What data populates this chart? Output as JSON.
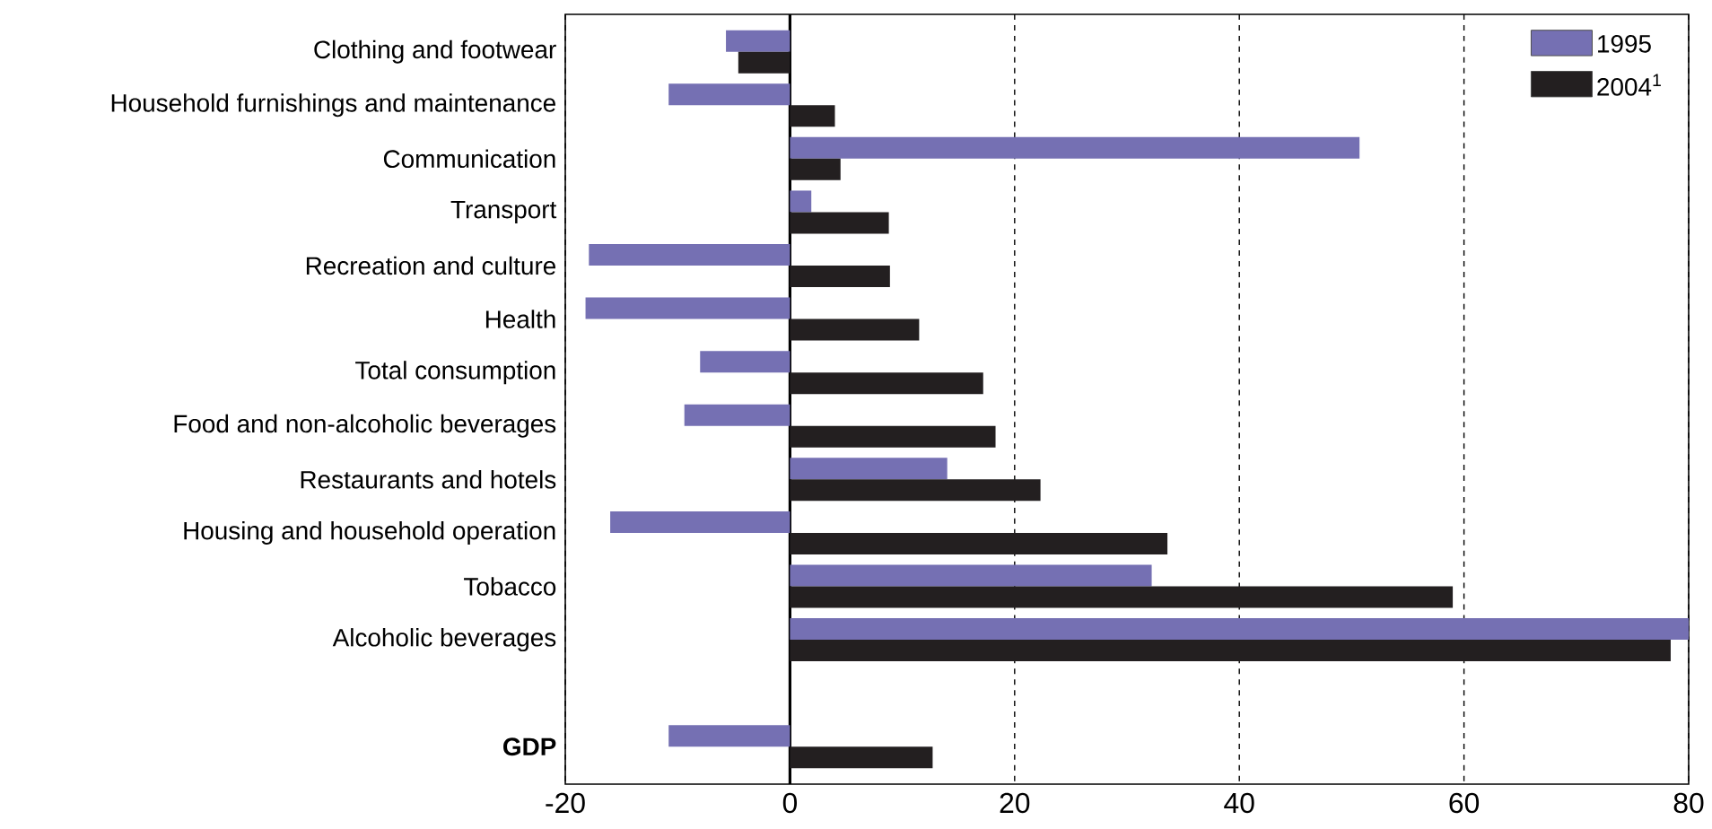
{
  "chart_data": {
    "type": "bar",
    "orientation": "horizontal",
    "categories": [
      "Clothing and footwear",
      "Household furnishings and maintenance",
      "Communication",
      "Transport",
      "Recreation and culture",
      "Health",
      "Total consumption",
      "Food and non-alcoholic beverages",
      "Restaurants and hotels",
      "Housing and household operation",
      "Tobacco",
      "Alcoholic beverages",
      null,
      "**GDP**"
    ],
    "series": [
      {
        "name": "1995",
        "color": "#7570b3",
        "values": [
          -5.7,
          -10.8,
          50.7,
          1.9,
          -17.9,
          -18.2,
          -8.0,
          -9.4,
          14.0,
          -16.0,
          32.2,
          80,
          null,
          -10.8
        ]
      },
      {
        "name": "2004$^{1}$",
        "color": "#231f20",
        "values": [
          -4.6,
          4.0,
          4.5,
          8.8,
          8.9,
          11.5,
          17.2,
          18.3,
          22.3,
          33.6,
          59.0,
          78.4,
          null,
          12.7
        ]
      }
    ],
    "xlim": [
      -20,
      80
    ],
    "xticks": [
      -20,
      0,
      20,
      40,
      60,
      80
    ],
    "grid": "x",
    "legend": "top right"
  }
}
